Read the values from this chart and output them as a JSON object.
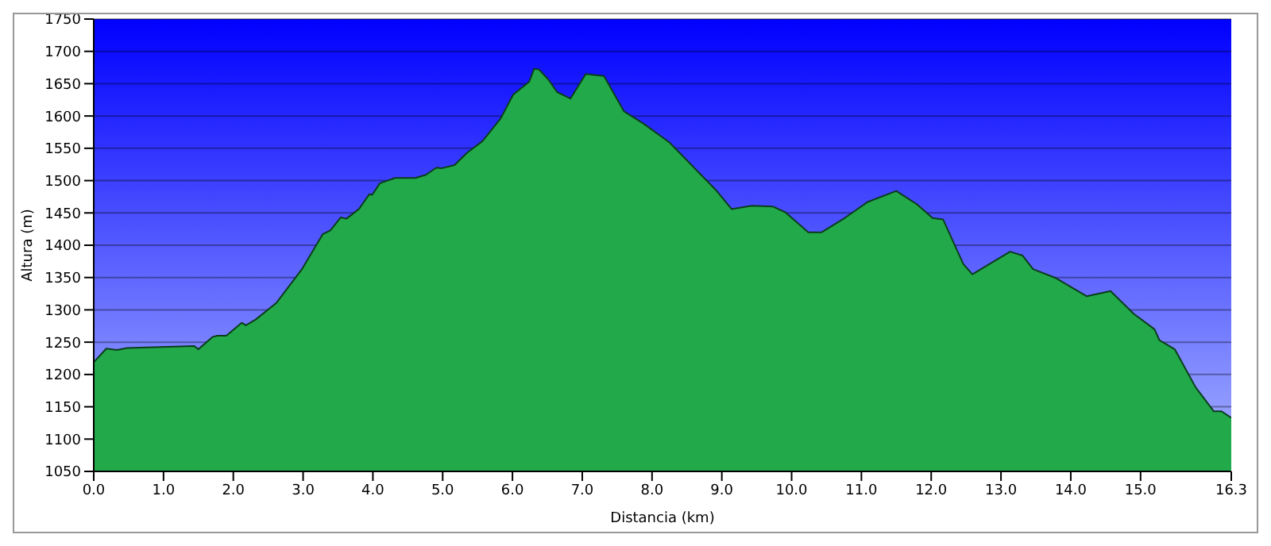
{
  "chart_data": {
    "type": "area",
    "xlabel": "Distancia (km)",
    "ylabel": "Altura (m)",
    "x": [
      0,
      0.18,
      0.33,
      0.48,
      1.44,
      1.5,
      1.7,
      1.77,
      1.9,
      2.12,
      2.18,
      2.32,
      2.62,
      2.99,
      3.28,
      3.39,
      3.54,
      3.62,
      3.8,
      3.95,
      3.99,
      4.1,
      4.32,
      4.61,
      4.76,
      4.91,
      4.98,
      5.17,
      5.35,
      5.57,
      5.83,
      6.01,
      6.24,
      6.31,
      6.38,
      6.51,
      6.64,
      6.83,
      7.05,
      7.31,
      7.6,
      7.88,
      8.25,
      8.91,
      9.14,
      9.43,
      9.73,
      9.91,
      10.24,
      10.43,
      10.76,
      11.09,
      11.5,
      11.8,
      12.02,
      12.17,
      12.46,
      12.59,
      13.13,
      13.31,
      13.46,
      13.79,
      14.23,
      14.57,
      14.9,
      15.2,
      15.27,
      15.49,
      15.79,
      16.05,
      16.16,
      16.3
    ],
    "series": [
      {
        "color": "#22a94a",
        "values": [
          1219,
          1240,
          1238,
          1241,
          1244,
          1239,
          1258,
          1260,
          1260,
          1280,
          1276,
          1285,
          1311,
          1364,
          1417,
          1423,
          1443,
          1441,
          1456,
          1479,
          1478,
          1496,
          1504,
          1504,
          1509,
          1520,
          1519,
          1524,
          1543,
          1561,
          1596,
          1633,
          1653,
          1673,
          1672,
          1657,
          1637,
          1627,
          1665,
          1662,
          1607,
          1588,
          1559,
          1486,
          1456,
          1461,
          1460,
          1451,
          1420,
          1420,
          1442,
          1467,
          1484,
          1463,
          1442,
          1440,
          1371,
          1355,
          1390,
          1384,
          1363,
          1349,
          1321,
          1329,
          1294,
          1270,
          1253,
          1239,
          1180,
          1143,
          1143,
          1133
        ]
      }
    ],
    "xlim": [
      0,
      16.3
    ],
    "xticks": [
      {
        "value": 0,
        "label": "0.0"
      },
      {
        "value": 1,
        "label": "1.0"
      },
      {
        "value": 2,
        "label": "2.0"
      },
      {
        "value": 3,
        "label": "3.0"
      },
      {
        "value": 4,
        "label": "4.0"
      },
      {
        "value": 5,
        "label": "5.0"
      },
      {
        "value": 6,
        "label": "6.0"
      },
      {
        "value": 7,
        "label": "7.0"
      },
      {
        "value": 8,
        "label": "8.0"
      },
      {
        "value": 9,
        "label": "9.0"
      },
      {
        "value": 10,
        "label": "10.0"
      },
      {
        "value": 11,
        "label": "11.0"
      },
      {
        "value": 12,
        "label": "12.0"
      },
      {
        "value": 13,
        "label": "13.0"
      },
      {
        "value": 14,
        "label": "14.0"
      },
      {
        "value": 15,
        "label": "15.0"
      },
      {
        "value": 16.3,
        "label": "16.3"
      }
    ],
    "ylim": [
      1050,
      1750
    ],
    "yticks": [
      1050,
      1100,
      1150,
      1200,
      1250,
      1300,
      1350,
      1400,
      1450,
      1500,
      1550,
      1600,
      1650,
      1700,
      1750
    ],
    "grid": "y",
    "legend": false
  }
}
